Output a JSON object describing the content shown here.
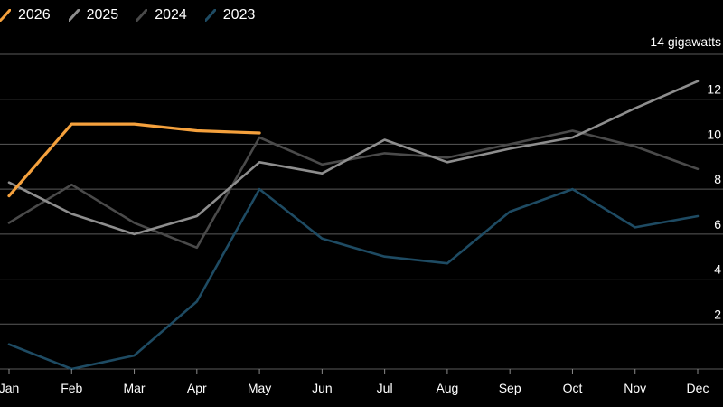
{
  "chart_data": {
    "type": "line",
    "unit_label": "14 gigawatts",
    "categories": [
      "Jan",
      "Feb",
      "Mar",
      "Apr",
      "May",
      "Jun",
      "Jul",
      "Aug",
      "Sep",
      "Oct",
      "Nov",
      "Dec"
    ],
    "ylim": [
      0,
      14
    ],
    "y_ticks": [
      2,
      4,
      6,
      8,
      10,
      12
    ],
    "grid": true,
    "legend_position": "top-left",
    "series": [
      {
        "name": "2026",
        "color": "#F5A13D",
        "values": [
          7.7,
          10.9,
          10.9,
          10.6,
          10.5,
          null,
          null,
          null,
          null,
          null,
          null,
          null
        ]
      },
      {
        "name": "2025",
        "color": "#8E8E8E",
        "values": [
          8.3,
          6.9,
          6.0,
          6.8,
          9.2,
          8.7,
          10.2,
          9.2,
          9.8,
          10.3,
          11.6,
          12.8
        ]
      },
      {
        "name": "2024",
        "color": "#4A4A4A",
        "values": [
          6.5,
          8.2,
          6.5,
          5.4,
          10.3,
          9.1,
          9.6,
          9.4,
          10.0,
          10.6,
          9.9,
          8.9
        ]
      },
      {
        "name": "2023",
        "color": "#1E4B63",
        "values": [
          1.1,
          0.0,
          0.6,
          3.0,
          8.0,
          5.8,
          5.0,
          4.7,
          7.0,
          8.0,
          6.3,
          6.8
        ]
      }
    ]
  }
}
